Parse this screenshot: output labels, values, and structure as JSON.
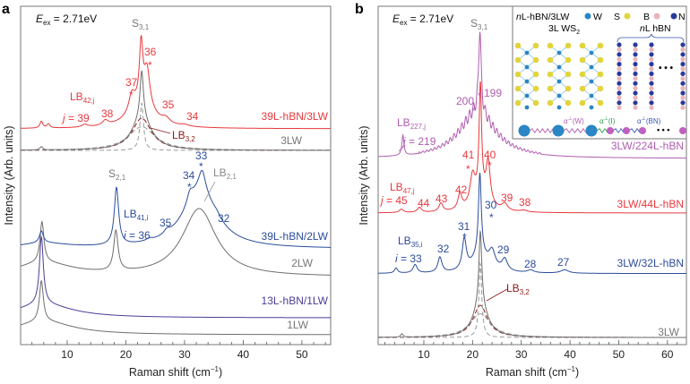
{
  "chart_data": [
    {
      "panel": "a",
      "type": "line",
      "xlabel": {
        "main": "Raman shift (cm",
        "sup": "−1",
        "tail": ")"
      },
      "ylabel": "Intensity (Arb. units)",
      "xlim": [
        2.06,
        54.9
      ],
      "ylim": [
        0,
        100
      ],
      "xticks": [
        10,
        20,
        30,
        40,
        50
      ],
      "xtick_labels": [
        "10",
        "20",
        "30",
        "40",
        "50"
      ],
      "minor_tick_step": 2,
      "excitation": {
        "symbol": "E",
        "sub": "ex",
        "value": " = 2.71eV"
      },
      "series": [
        {
          "name": "1LW",
          "color": "#6e6e6e",
          "offset": 2.9,
          "peaks": [
            [
              5.6,
              12,
              0.4
            ],
            [
              6,
              4,
              6
            ]
          ]
        },
        {
          "name": "13L-hBN/1LW",
          "color": "#4a3d96",
          "offset": 7.9,
          "peaks": [
            [
              5.6,
              20,
              0.4
            ],
            [
              6,
              4,
              6
            ]
          ]
        },
        {
          "name": "2LW",
          "color": "#6e6e6e",
          "offset": 20,
          "peaks": [
            [
              5.7,
              12,
              0.4
            ],
            [
              6,
              4,
              6
            ],
            [
              18.3,
              12,
              0.45
            ],
            [
              32.5,
              20,
              3.5
            ]
          ]
        },
        {
          "name": "39L-hBN/2LW",
          "color": "#2b4c9b",
          "offset": 28.3,
          "peaks": [
            [
              5.6,
              3.5,
              0.4
            ],
            [
              6,
              1.5,
              5
            ],
            [
              18.4,
              17,
              0.45
            ],
            [
              32.6,
              17,
              3.5
            ],
            [
              33,
              6,
              0.7
            ],
            [
              30.9,
              3,
              0.6
            ],
            [
              27,
              1.2,
              0.6
            ],
            [
              24,
              0.6,
              0.6
            ],
            [
              35.5,
              1,
              0.8
            ]
          ]
        },
        {
          "name": "3LW",
          "color": "#6e6e6e",
          "offset": 57.4,
          "peaks": [
            [
              5.6,
              1,
              0.3
            ],
            [
              22.7,
              14,
              0.35
            ],
            [
              22.7,
              9.5,
              2
            ]
          ]
        },
        {
          "name": "39L-hBN/3LW",
          "color": "#e8383d",
          "offset": 63.8,
          "peaks": [
            [
              5.6,
              2,
              0.3
            ],
            [
              6.8,
              1.2,
              0.3
            ],
            [
              13,
              0.8,
              0.6
            ],
            [
              16.5,
              1.5,
              0.6
            ],
            [
              21,
              5,
              0.6
            ],
            [
              22.6,
              17,
              0.35
            ],
            [
              22.6,
              7,
              2.5
            ],
            [
              23.6,
              11,
              0.6
            ],
            [
              26.8,
              1.5,
              0.8
            ],
            [
              30,
              0.5,
              0.8
            ]
          ]
        }
      ],
      "components": [
        {
          "name": "S3,1 component",
          "color": "#9a9a9a",
          "offset": 57.4,
          "peaks": [
            [
              22.7,
              14,
              0.35
            ]
          ]
        },
        {
          "name": "LB3,2 component",
          "color": "#8b1a1a",
          "offset": 57.4,
          "peaks": [
            [
              22.7,
              9.5,
              2
            ]
          ]
        },
        {
          "name": "broad component",
          "color": "#9a9a9a",
          "offset": 57.4,
          "peaks": [
            [
              22.7,
              7,
              2.8
            ]
          ]
        }
      ],
      "annotations": {
        "s31": {
          "main": "S",
          "sub": "3,1"
        },
        "lb42": {
          "main": "LB",
          "sub": "42,j"
        },
        "j39": {
          "var": "j",
          "text": " = 39"
        },
        "m38": "38",
        "m37": "37",
        "m36": "36",
        "m35": "35",
        "m34": "34",
        "star": "*",
        "lb32": {
          "main": "LB",
          "sub": "3,2"
        },
        "s21": {
          "main": "S",
          "sub": "2,1"
        },
        "lb41": {
          "main": "LB",
          "sub": "41,i"
        },
        "i36": {
          "var": "i",
          "text": " = 36"
        },
        "n35": "35",
        "n34": "34",
        "n33": "33",
        "n32": "32",
        "lb21": {
          "main": "LB",
          "sub": "2,1"
        }
      }
    },
    {
      "panel": "b",
      "type": "line",
      "xlabel": {
        "main": "Raman shift (cm",
        "sup": "−1",
        "tail": ")"
      },
      "ylabel": "Intensity (Arb. units)",
      "xlim": [
        0.62,
        63.9
      ],
      "ylim": [
        0,
        100
      ],
      "xticks": [
        10,
        20,
        30,
        40,
        50,
        60
      ],
      "xtick_labels": [
        "10",
        "20",
        "30",
        "40",
        "50",
        "60"
      ],
      "minor_tick_step": 2,
      "excitation": {
        "symbol": "E",
        "sub": "ex",
        "value": " = 2.71eV"
      },
      "series": [
        {
          "name": "3LW",
          "color": "#6e6e6e",
          "offset": 2.1,
          "peaks": [
            [
              5.5,
              1,
              0.3
            ],
            [
              21.6,
              22,
              0.35
            ],
            [
              21.6,
              9.5,
              1.8
            ]
          ]
        },
        {
          "name": "3LW/32L-hBN",
          "color": "#2b4c9b",
          "offset": 21,
          "peaks": [
            [
              4.3,
              1.5,
              0.4
            ],
            [
              8.2,
              2.5,
              0.5
            ],
            [
              13.3,
              4.5,
              0.5
            ],
            [
              18.3,
              9,
              0.5
            ],
            [
              21.5,
              24,
              0.35
            ],
            [
              21.5,
              5,
              2
            ],
            [
              24,
              5,
              0.8
            ],
            [
              26.6,
              3.5,
              0.7
            ],
            [
              31.9,
              0.8,
              0.8
            ],
            [
              38.9,
              1,
              1
            ]
          ]
        },
        {
          "name": "3LW/44L-hBN",
          "color": "#e8383d",
          "offset": 38.9,
          "peaks": [
            [
              5.4,
              1,
              0.5
            ],
            [
              9.1,
              1.5,
              0.5
            ],
            [
              13.5,
              2.5,
              0.5
            ],
            [
              17.4,
              4.5,
              0.5
            ],
            [
              20,
              8,
              0.6
            ],
            [
              21.6,
              32,
              0.3
            ],
            [
              21.6,
              5,
              2
            ],
            [
              23.2,
              12,
              0.5
            ],
            [
              26.6,
              2,
              0.7
            ],
            [
              30.5,
              0.5,
              0.8
            ]
          ]
        },
        {
          "name": "3LW/224L-hBN",
          "color": "#b05cb0",
          "offset": 55,
          "peaks": [
            [
              5.7,
              6,
              0.25
            ],
            [
              21.5,
              25,
              0.3
            ],
            [
              21,
              12,
              4.5
            ]
          ],
          "ripple": {
            "from": 9,
            "to": 34,
            "spacing": 0.8,
            "amp": 0.3
          }
        }
      ],
      "components": [
        {
          "name": "S3,1 component",
          "color": "#9a9a9a",
          "offset": 2.1,
          "peaks": [
            [
              21.6,
              22,
              0.35
            ]
          ]
        },
        {
          "name": "LB3,2 component",
          "color": "#8b1a1a",
          "offset": 2.1,
          "peaks": [
            [
              21.6,
              9.5,
              1.8
            ]
          ]
        },
        {
          "name": "broad component",
          "color": "#9a9a9a",
          "offset": 2.1,
          "peaks": [
            [
              21.6,
              7,
              2.6
            ]
          ]
        }
      ],
      "annotations": {
        "s31": {
          "main": "S",
          "sub": "3,1"
        },
        "m200": "200",
        "m199": "199",
        "star": "*",
        "lb227": {
          "main": "LB",
          "sub": "227,j"
        },
        "j219": {
          "var": "j",
          "text": " = 219"
        },
        "r41": "41",
        "r40": "40",
        "lb47": {
          "main": "LB",
          "sub": "47,j"
        },
        "j45": {
          "var": "j",
          "text": " = 45"
        },
        "r44": "44",
        "r43": "43",
        "r42": "42",
        "r39": "39",
        "r38": "38",
        "b30": "30",
        "b31": "31",
        "lb35": {
          "main": "LB",
          "sub": "35,i"
        },
        "i33": {
          "var": "i",
          "text": " = 33"
        },
        "b32": "32",
        "b29": "29",
        "b28": "28",
        "b27": "27",
        "lb32": {
          "main": "LB",
          "sub": "3,2"
        }
      },
      "inset": {
        "title": {
          "var": "n",
          "text": "L-hBN/3LW"
        },
        "legend": [
          {
            "label": "W",
            "color": "#2a86c4"
          },
          {
            "label": "S",
            "color": "#e2d43c"
          },
          {
            "label": "B",
            "color": "#e9b4ba"
          },
          {
            "label": "N",
            "color": "#2a3a9a"
          }
        ],
        "ws2_label": {
          "main": "3L WS",
          "sub": "2"
        },
        "hbn_label": {
          "var": "n",
          "text": "L hBN"
        },
        "springs": [
          {
            "label": "α",
            "sup": "⊥",
            "tail": "(W)",
            "color": "#b05cb0"
          },
          {
            "label": "α",
            "sup": "⊥",
            "tail": "(I)",
            "color": "#2aa04a"
          },
          {
            "label": "α",
            "sup": "⊥",
            "tail": "(BN)",
            "color": "#3a55b0"
          }
        ],
        "ellipsis": "• • •"
      }
    }
  ],
  "figure": {
    "panel_letters": [
      "a",
      "b"
    ]
  }
}
